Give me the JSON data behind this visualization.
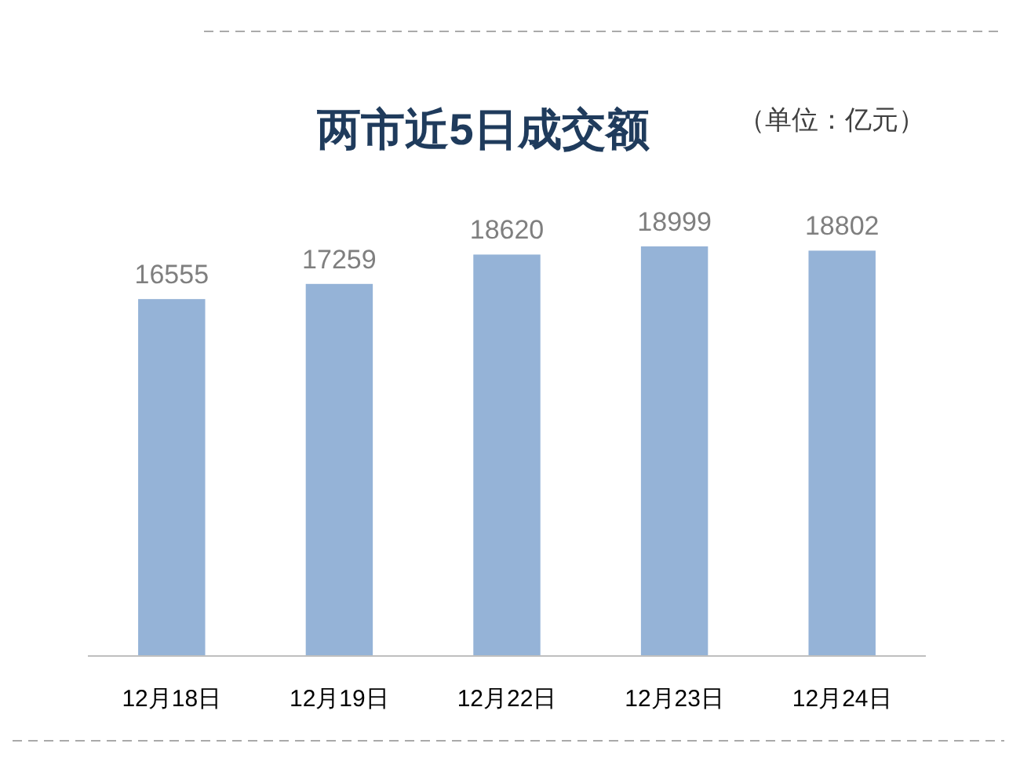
{
  "chart_data": {
    "type": "bar",
    "title": "两市近5日成交额",
    "annotations": [
      "（单位：亿元）"
    ],
    "categories": [
      "12月18日",
      "12月19日",
      "12月22日",
      "12月23日",
      "12月24日"
    ],
    "values": [
      16555,
      17259,
      18620,
      18999,
      18802
    ],
    "color": "#95b3d7",
    "data_labels": true
  }
}
